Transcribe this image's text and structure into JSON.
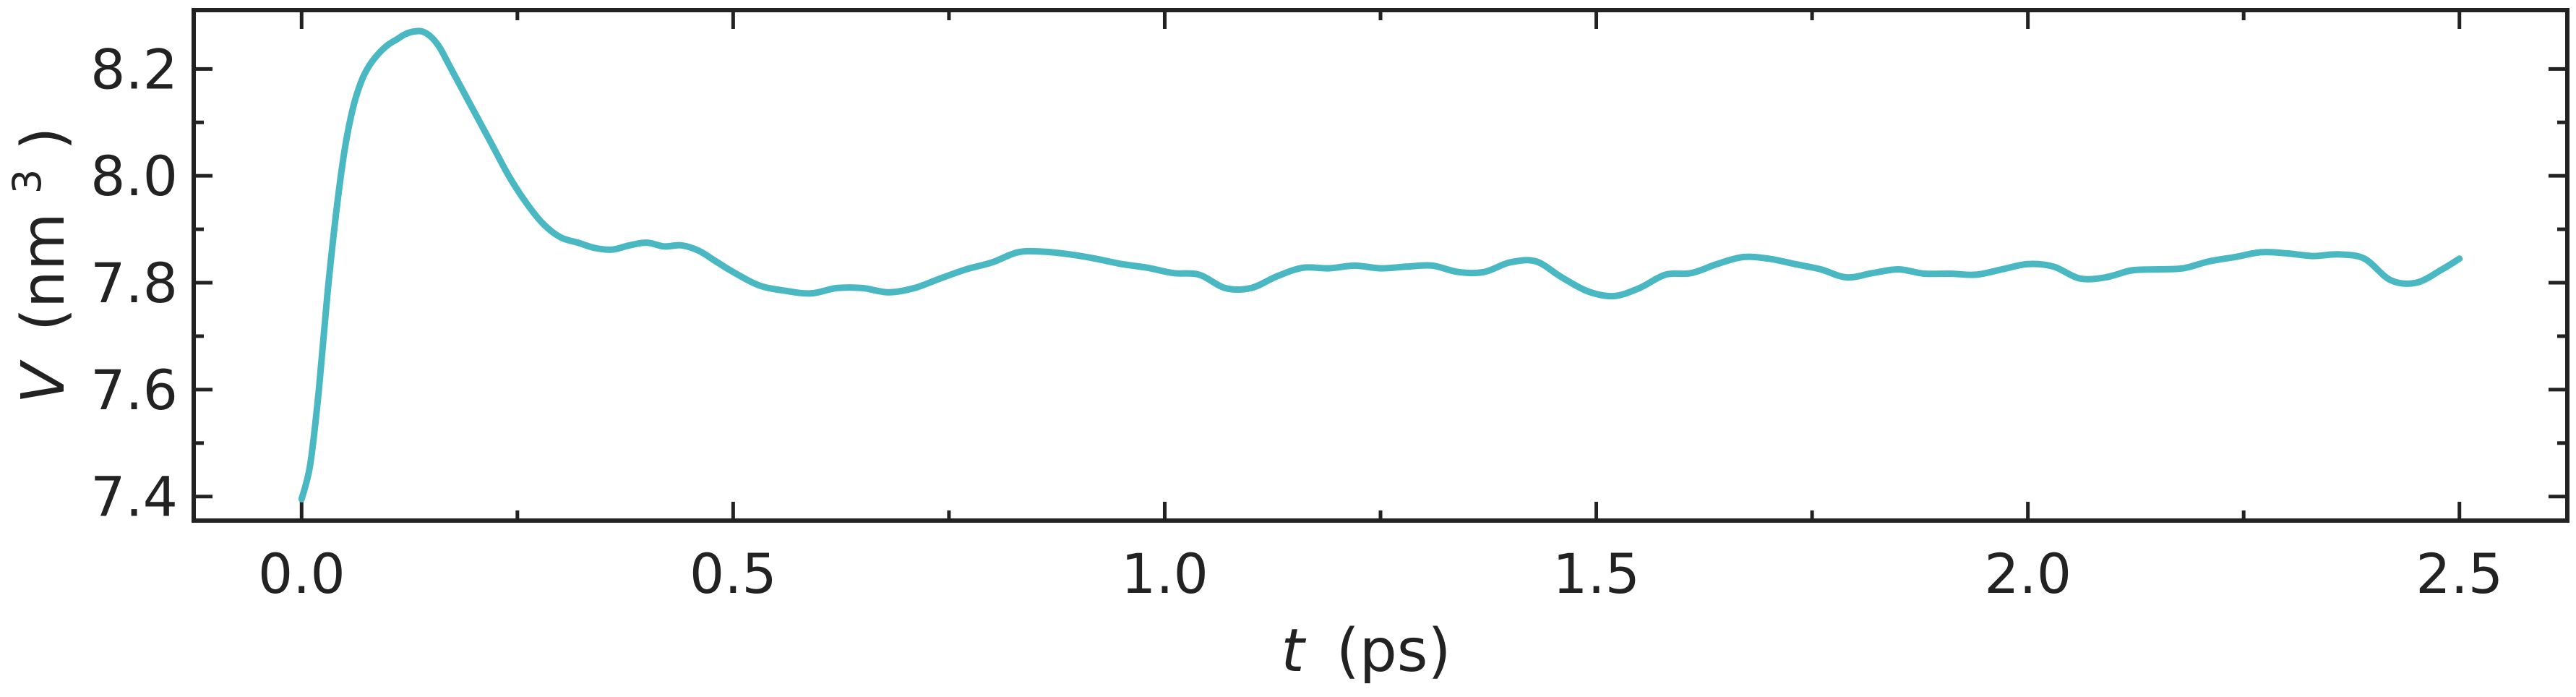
{
  "chart_data": {
    "type": "line",
    "title": "",
    "xlabel": {
      "var": "t",
      "unit": "(ps)"
    },
    "ylabel": {
      "var": "V",
      "unit_open": "(nm",
      "unit_sup": "3",
      "unit_close": ")"
    },
    "xlim": [
      -0.125,
      2.625
    ],
    "ylim": [
      7.355,
      8.31
    ],
    "x_ticks": [
      {
        "value": 0.0,
        "label": "0.0"
      },
      {
        "value": 0.5,
        "label": "0.5"
      },
      {
        "value": 1.0,
        "label": "1.0"
      },
      {
        "value": 1.5,
        "label": "1.5"
      },
      {
        "value": 2.0,
        "label": "2.0"
      },
      {
        "value": 2.5,
        "label": "2.5"
      }
    ],
    "x_minor_ticks": [
      0.25,
      0.75,
      1.25,
      1.75,
      2.25
    ],
    "y_ticks": [
      {
        "value": 7.4,
        "label": "7.4"
      },
      {
        "value": 7.6,
        "label": "7.6"
      },
      {
        "value": 7.8,
        "label": "7.8"
      },
      {
        "value": 8.0,
        "label": "8.0"
      },
      {
        "value": 8.2,
        "label": "8.2"
      }
    ],
    "y_minor_ticks": [
      7.5,
      7.7,
      7.9,
      8.1
    ],
    "grid": false,
    "series": [
      {
        "color": "#4ab8c3",
        "x": [
          0.0,
          0.01,
          0.02,
          0.03,
          0.04,
          0.05,
          0.06,
          0.07,
          0.08,
          0.09,
          0.1,
          0.11,
          0.12,
          0.13,
          0.14,
          0.15,
          0.16,
          0.17,
          0.18,
          0.19,
          0.2,
          0.22,
          0.24,
          0.26,
          0.28,
          0.3,
          0.32,
          0.34,
          0.36,
          0.38,
          0.4,
          0.42,
          0.44,
          0.46,
          0.48,
          0.5,
          0.53,
          0.56,
          0.59,
          0.62,
          0.65,
          0.68,
          0.71,
          0.74,
          0.77,
          0.8,
          0.83,
          0.86,
          0.89,
          0.92,
          0.95,
          0.98,
          1.01,
          1.04,
          1.07,
          1.1,
          1.13,
          1.16,
          1.19,
          1.22,
          1.25,
          1.28,
          1.31,
          1.34,
          1.37,
          1.4,
          1.43,
          1.46,
          1.49,
          1.52,
          1.55,
          1.58,
          1.61,
          1.64,
          1.67,
          1.7,
          1.73,
          1.76,
          1.79,
          1.82,
          1.85,
          1.88,
          1.91,
          1.94,
          1.97,
          2.0,
          2.03,
          2.06,
          2.09,
          2.12,
          2.15,
          2.18,
          2.21,
          2.24,
          2.27,
          2.3,
          2.33,
          2.36,
          2.39,
          2.42,
          2.45,
          2.48,
          2.5
        ],
        "y": [
          7.395,
          7.46,
          7.6,
          7.78,
          7.93,
          8.05,
          8.13,
          8.18,
          8.21,
          8.23,
          8.245,
          8.255,
          8.265,
          8.27,
          8.27,
          8.26,
          8.24,
          8.21,
          8.18,
          8.15,
          8.12,
          8.06,
          8.0,
          7.95,
          7.91,
          7.885,
          7.875,
          7.865,
          7.862,
          7.87,
          7.875,
          7.868,
          7.87,
          7.86,
          7.84,
          7.82,
          7.795,
          7.785,
          7.78,
          7.79,
          7.79,
          7.782,
          7.79,
          7.808,
          7.825,
          7.838,
          7.857,
          7.858,
          7.853,
          7.845,
          7.835,
          7.828,
          7.818,
          7.815,
          7.79,
          7.79,
          7.812,
          7.828,
          7.827,
          7.832,
          7.827,
          7.83,
          7.832,
          7.82,
          7.82,
          7.838,
          7.84,
          7.81,
          7.784,
          7.775,
          7.79,
          7.815,
          7.818,
          7.835,
          7.848,
          7.845,
          7.835,
          7.825,
          7.81,
          7.818,
          7.825,
          7.817,
          7.817,
          7.815,
          7.825,
          7.835,
          7.83,
          7.808,
          7.81,
          7.823,
          7.825,
          7.827,
          7.84,
          7.848,
          7.857,
          7.855,
          7.85,
          7.853,
          7.845,
          7.805,
          7.8,
          7.825,
          7.845
        ]
      }
    ]
  }
}
